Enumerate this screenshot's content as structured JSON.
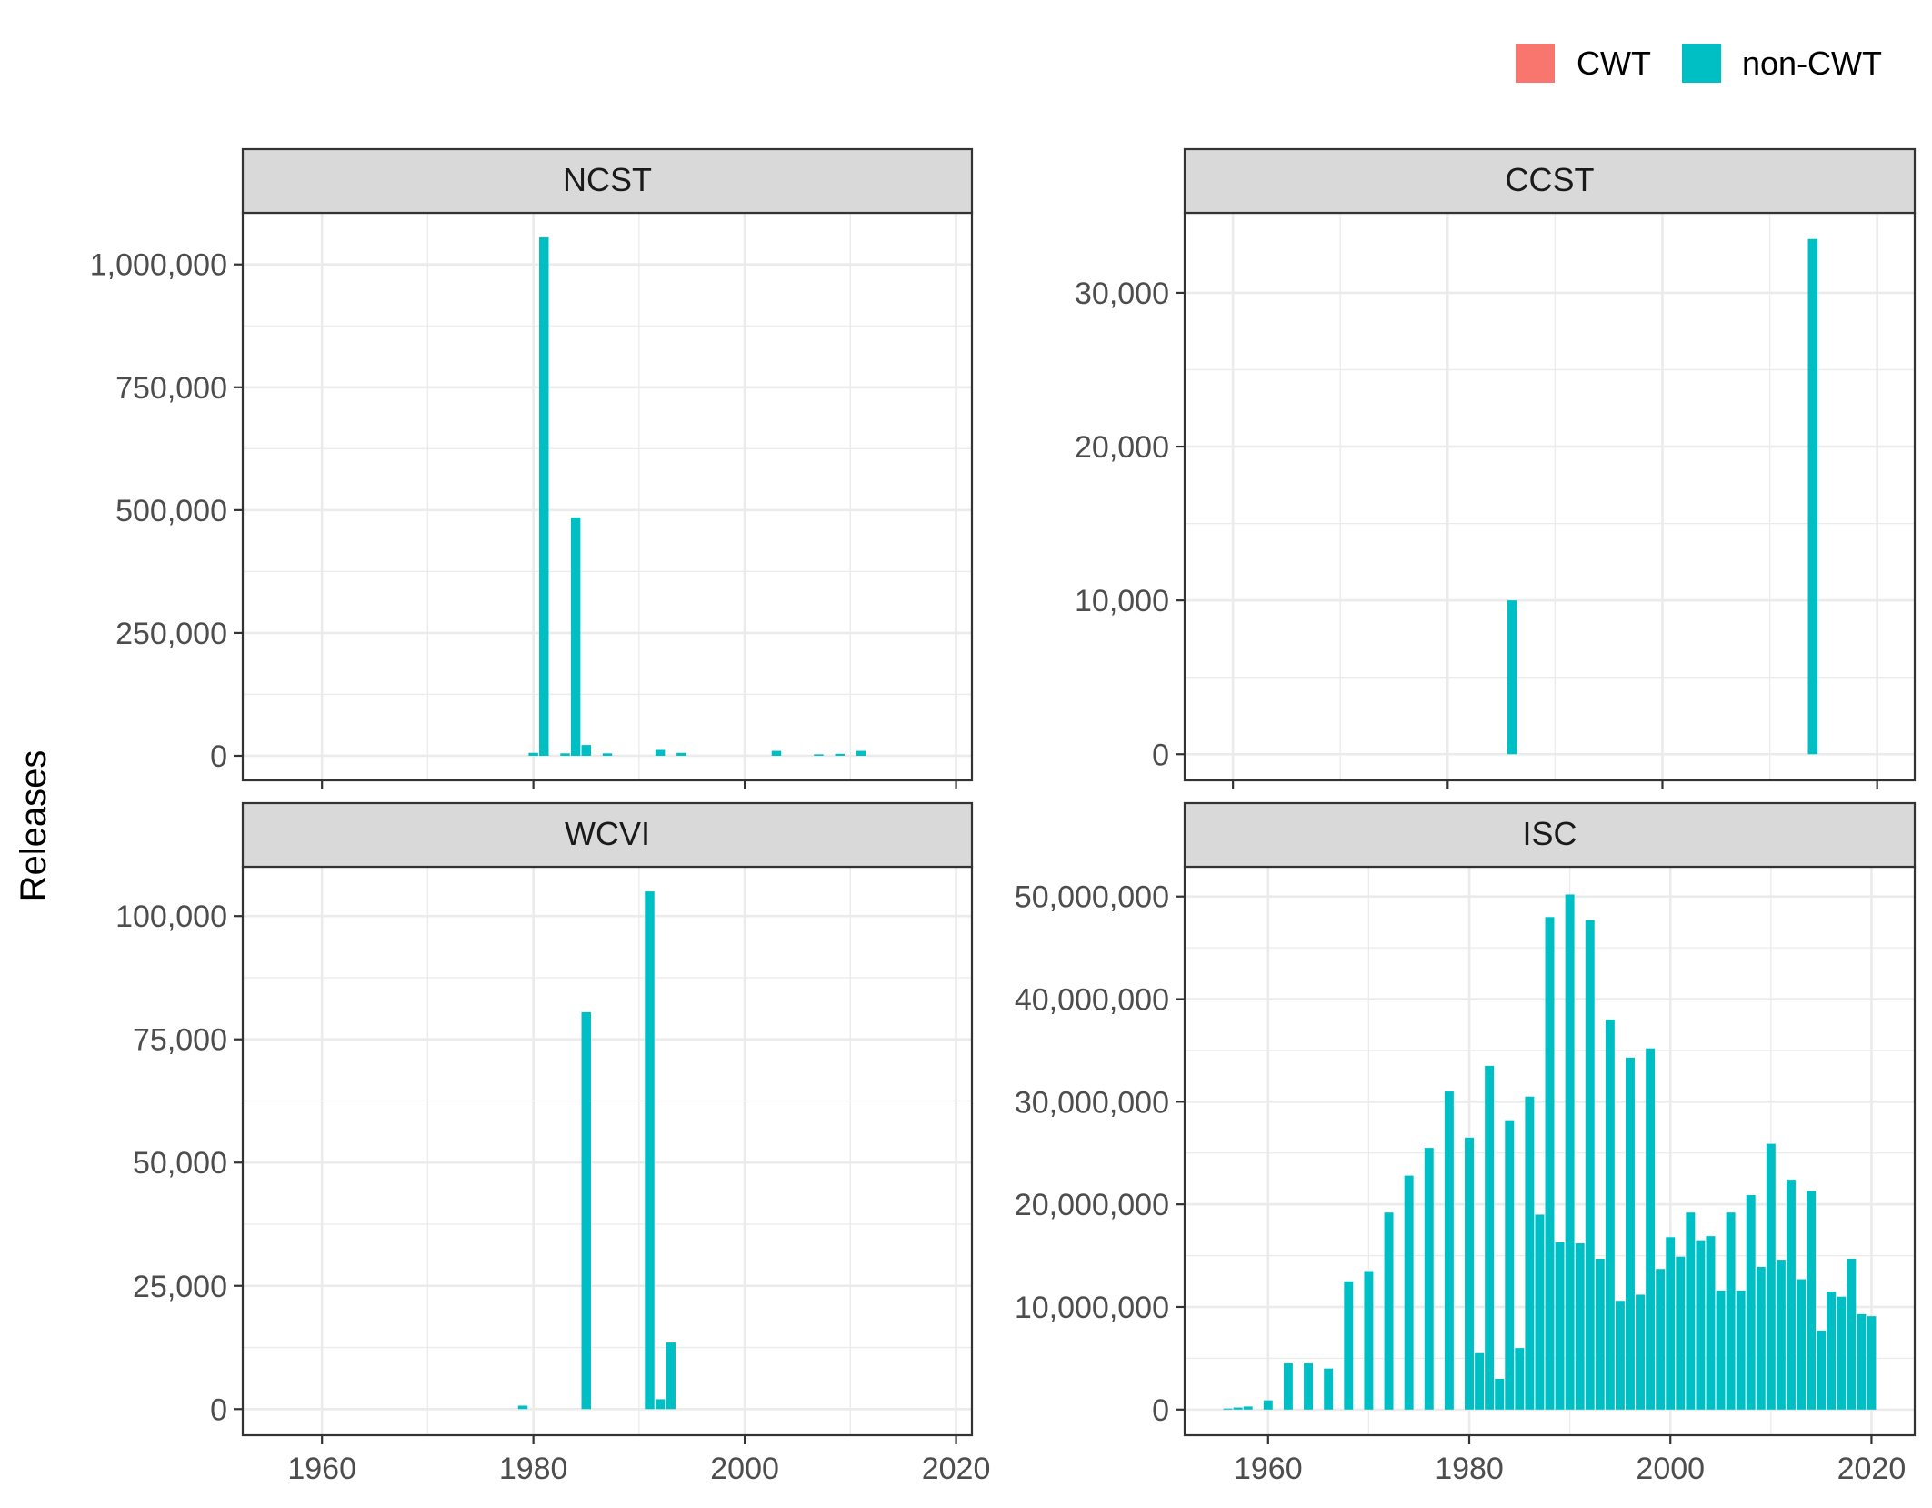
{
  "ylabel": "Releases",
  "legend": {
    "position": "top-right",
    "items": [
      {
        "label": "CWT",
        "color": "#F8766D"
      },
      {
        "label": "non-CWT",
        "color": "#00BFC4"
      }
    ]
  },
  "colors": {
    "cwt": "#F8766D",
    "non_cwt": "#00BFC4",
    "strip_bg": "#D9D9D9",
    "panel_border": "#333333",
    "grid": "#EBEBEB"
  },
  "chart_data": [
    {
      "type": "bar",
      "title": "NCST",
      "xlim": [
        1952.5,
        2021.5
      ],
      "x_ticks": [
        1960,
        1980,
        2000,
        2020
      ],
      "x_tick_labels": [
        "1960",
        "1980",
        "2000",
        "2020"
      ],
      "ylim": [
        -50000,
        1105000
      ],
      "y_ticks": [
        0,
        250000,
        500000,
        750000,
        1000000
      ],
      "y_tick_labels": [
        "0",
        "250,000",
        "500,000",
        "750,000",
        "1,000,000"
      ],
      "grid": true,
      "series": [
        {
          "name": "non-CWT",
          "x": [
            1980,
            1981,
            1983,
            1984,
            1985,
            1987,
            1992,
            1994,
            2003,
            2007,
            2009,
            2011
          ],
          "values": [
            6000,
            1055000,
            5000,
            485000,
            22000,
            5000,
            12000,
            6000,
            10000,
            3000,
            4000,
            10000
          ]
        }
      ]
    },
    {
      "type": "bar",
      "title": "CCST",
      "xlim": [
        1955.5,
        2023.5
      ],
      "x_ticks": [
        1960,
        1980,
        2000,
        2020
      ],
      "x_tick_labels": [
        "1960",
        "1980",
        "2000",
        "2020"
      ],
      "ylim": [
        -1700,
        35200
      ],
      "y_ticks": [
        0,
        10000,
        20000,
        30000
      ],
      "y_tick_labels": [
        "0",
        "10,000",
        "20,000",
        "30,000"
      ],
      "grid": true,
      "series": [
        {
          "name": "non-CWT",
          "x": [
            1986,
            2014
          ],
          "values": [
            10000,
            33500
          ]
        }
      ]
    },
    {
      "type": "bar",
      "title": "WCVI",
      "xlim": [
        1952.5,
        2021.5
      ],
      "x_ticks": [
        1960,
        1980,
        2000,
        2020
      ],
      "x_tick_labels": [
        "1960",
        "1980",
        "2000",
        "2020"
      ],
      "ylim": [
        -5300,
        110000
      ],
      "y_ticks": [
        0,
        25000,
        50000,
        75000,
        100000
      ],
      "y_tick_labels": [
        "0",
        "25,000",
        "50,000",
        "75,000",
        "100,000"
      ],
      "grid": true,
      "series": [
        {
          "name": "non-CWT",
          "x": [
            1979,
            1985,
            1991,
            1992,
            1993
          ],
          "values": [
            700,
            80500,
            105000,
            2000,
            13500
          ]
        }
      ]
    },
    {
      "type": "bar",
      "title": "ISC",
      "xlim": [
        1951.7,
        2024.3
      ],
      "x_ticks": [
        1960,
        1980,
        2000,
        2020
      ],
      "x_tick_labels": [
        "1960",
        "1980",
        "2000",
        "2020"
      ],
      "ylim": [
        -2500000,
        52900000
      ],
      "y_ticks": [
        0,
        10000000,
        20000000,
        30000000,
        40000000,
        50000000
      ],
      "y_tick_labels": [
        "0",
        "10,000,000",
        "20,000,000",
        "30,000,000",
        "40,000,000",
        "50,000,000"
      ],
      "grid": true,
      "series": [
        {
          "name": "non-CWT",
          "x": [
            1956,
            1957,
            1958,
            1960,
            1962,
            1964,
            1966,
            1968,
            1970,
            1972,
            1974,
            1976,
            1978,
            1980,
            1981,
            1982,
            1983,
            1984,
            1985,
            1986,
            1987,
            1988,
            1989,
            1990,
            1991,
            1992,
            1993,
            1994,
            1995,
            1996,
            1997,
            1998,
            1999,
            2000,
            2001,
            2002,
            2003,
            2004,
            2005,
            2006,
            2007,
            2008,
            2009,
            2010,
            2011,
            2012,
            2013,
            2014,
            2015,
            2016,
            2017,
            2018,
            2019,
            2020
          ],
          "values": [
            100000,
            200000,
            300000,
            900000,
            4500000,
            4500000,
            4000000,
            12500000,
            13500000,
            19200000,
            22800000,
            25500000,
            31000000,
            26500000,
            5500000,
            33500000,
            3000000,
            28200000,
            6000000,
            30500000,
            19000000,
            48000000,
            16300000,
            50200000,
            16200000,
            47700000,
            14700000,
            38000000,
            10600000,
            34300000,
            11200000,
            35200000,
            13700000,
            16800000,
            14900000,
            19200000,
            16500000,
            16900000,
            11600000,
            19200000,
            11600000,
            20900000,
            13900000,
            25900000,
            14600000,
            22400000,
            12700000,
            21300000,
            7700000,
            11500000,
            11000000,
            14700000,
            9300000,
            9100000
          ]
        }
      ]
    }
  ]
}
